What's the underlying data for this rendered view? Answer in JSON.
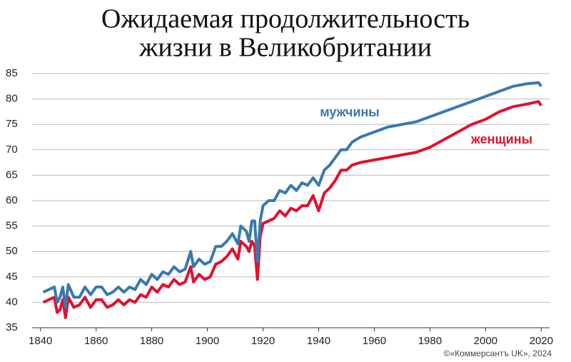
{
  "chart_data": {
    "type": "line",
    "title": [
      "Ожидаемая продолжительность",
      "жизни в Великобритании"
    ],
    "source": "©«Коммерсантъ UK», 2024",
    "x": [
      1841,
      1843,
      1845,
      1846,
      1847,
      1848,
      1849,
      1850,
      1852,
      1854,
      1856,
      1858,
      1860,
      1862,
      1864,
      1866,
      1868,
      1870,
      1872,
      1874,
      1876,
      1878,
      1880,
      1882,
      1884,
      1886,
      1888,
      1890,
      1892,
      1894,
      1895,
      1897,
      1899,
      1901,
      1903,
      1905,
      1907,
      1909,
      1911,
      1912,
      1914,
      1915,
      1916,
      1917,
      1918,
      1919,
      1920,
      1922,
      1924,
      1926,
      1928,
      1930,
      1932,
      1934,
      1936,
      1938,
      1940,
      1942,
      1944,
      1946,
      1948,
      1950,
      1952,
      1955,
      1960,
      1965,
      1970,
      1975,
      1980,
      1985,
      1990,
      1995,
      2000,
      2005,
      2010,
      2015,
      2019,
      2020
    ],
    "series": [
      {
        "name": "мужчины",
        "color": "#3a78b0",
        "values": [
          42,
          42.5,
          43,
          40,
          41,
          43,
          39,
          43.5,
          41,
          41,
          43,
          41.5,
          43,
          43,
          41.5,
          42,
          43,
          42,
          43,
          42.5,
          44.5,
          43.5,
          45.5,
          44.5,
          46,
          45.5,
          47,
          46,
          46.5,
          50,
          47,
          48.5,
          47.5,
          48,
          51,
          51,
          52,
          53.5,
          51.5,
          55,
          54,
          52,
          56,
          56,
          48,
          56,
          59,
          60,
          60,
          62,
          61.5,
          63,
          62,
          63.5,
          63,
          64.5,
          63,
          66,
          67,
          68.5,
          70,
          70,
          71.5,
          72.5,
          73.5,
          74.5,
          75,
          75.5,
          76.5,
          77.5,
          78.5,
          79.5,
          80.5,
          81.5,
          82.5,
          83,
          83.2,
          82.5
        ]
      },
      {
        "name": "женщины",
        "color": "#e0102f",
        "values": [
          40,
          40.5,
          41,
          38,
          38.5,
          40.5,
          37,
          41,
          39,
          39.5,
          41,
          39,
          40.5,
          40.5,
          39,
          39.5,
          40.5,
          39.5,
          40.5,
          40,
          41.5,
          41,
          43,
          42,
          43.5,
          43,
          44.5,
          43.5,
          44,
          47,
          44,
          45.5,
          44.5,
          45,
          47.5,
          48,
          49,
          50.5,
          48.5,
          52,
          51,
          50,
          52,
          51,
          44.5,
          53,
          55.5,
          56,
          56.5,
          58,
          57,
          58.5,
          58,
          59,
          59,
          61,
          58,
          61.5,
          62.5,
          64,
          66,
          66,
          67,
          67.5,
          68,
          68.5,
          69,
          69.5,
          70.5,
          72,
          73.5,
          75,
          76,
          77.5,
          78.5,
          79,
          79.5,
          78.7
        ]
      }
    ],
    "xlim": [
      1837,
      2023
    ],
    "xticks": [
      1840,
      1860,
      1880,
      1900,
      1920,
      1940,
      1960,
      1980,
      2000,
      2020
    ],
    "ylim": [
      35,
      85
    ],
    "yticks": [
      35,
      40,
      45,
      50,
      55,
      60,
      65,
      70,
      75,
      80,
      85
    ],
    "grid": true
  }
}
